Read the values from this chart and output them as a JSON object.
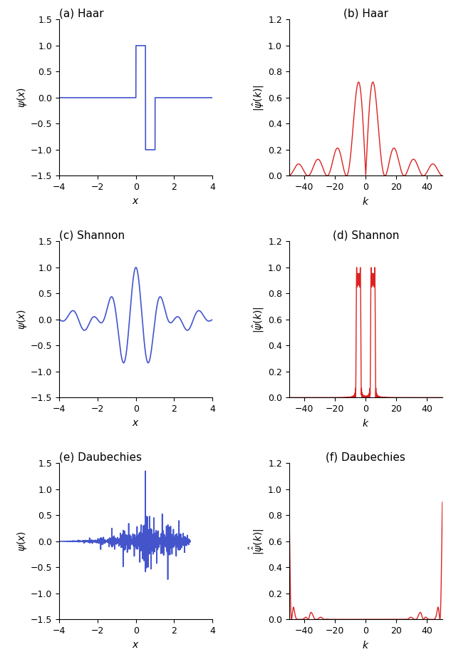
{
  "titles": [
    "(a) Haar",
    "(b) Haar",
    "(c) Shannon",
    "(d) Shannon",
    "(e) Daubechies",
    "(f) Daubechies"
  ],
  "blue_color": "#4455cc",
  "red_color": "#dd2222",
  "xlim_spatial": [
    -4,
    4
  ],
  "ylim_spatial": [
    -1.5,
    1.5
  ],
  "xlim_freq": [
    -50,
    50
  ],
  "ylim_freq": [
    0,
    1.2
  ],
  "yticks_spatial": [
    -1.5,
    -1.0,
    -0.5,
    0.0,
    0.5,
    1.0,
    1.5
  ],
  "yticks_freq": [
    0.0,
    0.2,
    0.4,
    0.6,
    0.8,
    1.0,
    1.2
  ],
  "xticks_spatial": [
    -4,
    -2,
    0,
    2,
    4
  ],
  "xticks_freq": [
    -40,
    -20,
    0,
    20,
    40
  ],
  "xlabel_spatial": "x",
  "xlabel_freq": "k",
  "haar_max_ft": 0.72,
  "daub_spatial_max": 1.35,
  "daub_ft_max": 0.9
}
